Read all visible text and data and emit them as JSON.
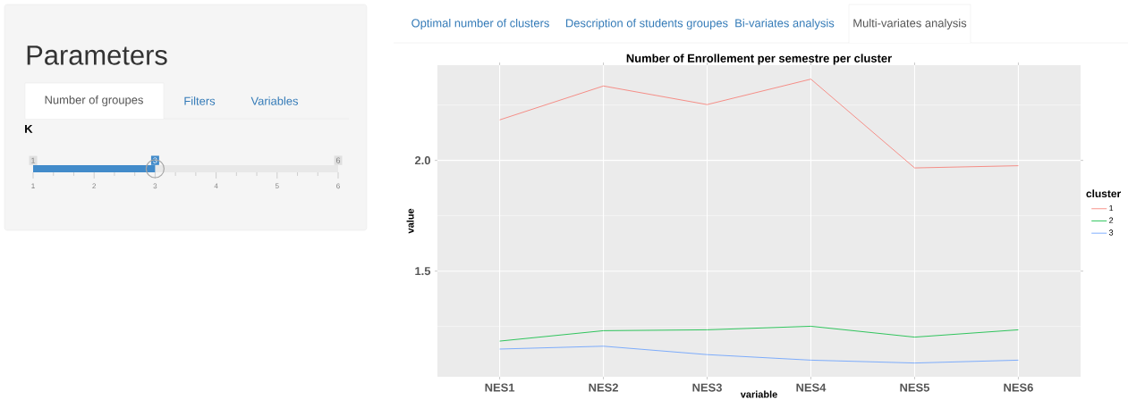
{
  "chart_data": [
    {
      "type": "other",
      "title": "Parameters",
      "annotations": [
        "Number of groupes",
        "Filters",
        "Variables",
        "Optimal number of clusters",
        "Description of students groupes",
        "Bi-variates analysis",
        "Multi-variates analysis"
      ]
    },
    {
      "type": "bar",
      "orientation": "horizontal",
      "title": "K",
      "categories": [
        null
      ],
      "values": [
        3
      ],
      "color": "#428bca",
      "xlim": [
        1,
        6
      ],
      "xticks": [
        1,
        2,
        3,
        4,
        5,
        6
      ],
      "data_labels": true,
      "annotations": [
        "1",
        "6"
      ]
    },
    {
      "type": "line",
      "title": "Number of Enrollement per semestre per cluster",
      "xlabel": "variable",
      "ylabel": "value",
      "legend_title": "cluster",
      "categories": [
        "NES1",
        "NES2",
        "NES3",
        "NES4",
        "NES5",
        "NES6"
      ],
      "series": [
        {
          "name": "1",
          "color": "#f8766d",
          "values": [
            2.183,
            2.336,
            2.252,
            2.367,
            1.966,
            1.976
          ]
        },
        {
          "name": "2",
          "color": "#00ba38",
          "values": [
            1.184,
            1.231,
            1.235,
            1.251,
            1.202,
            1.235
          ]
        },
        {
          "name": "3",
          "color": "#619cff",
          "values": [
            1.148,
            1.161,
            1.123,
            1.098,
            1.085,
            1.098
          ]
        }
      ],
      "ylim": [
        1.023,
        2.43
      ],
      "yticks": [
        {
          "value": 1.25,
          "label": null
        },
        1.5,
        {
          "value": 1.75,
          "label": null
        },
        {
          "value": 2.0,
          "label": "2.0"
        },
        {
          "value": 2.25,
          "label": null
        }
      ],
      "grid": true,
      "legend": "right"
    }
  ]
}
